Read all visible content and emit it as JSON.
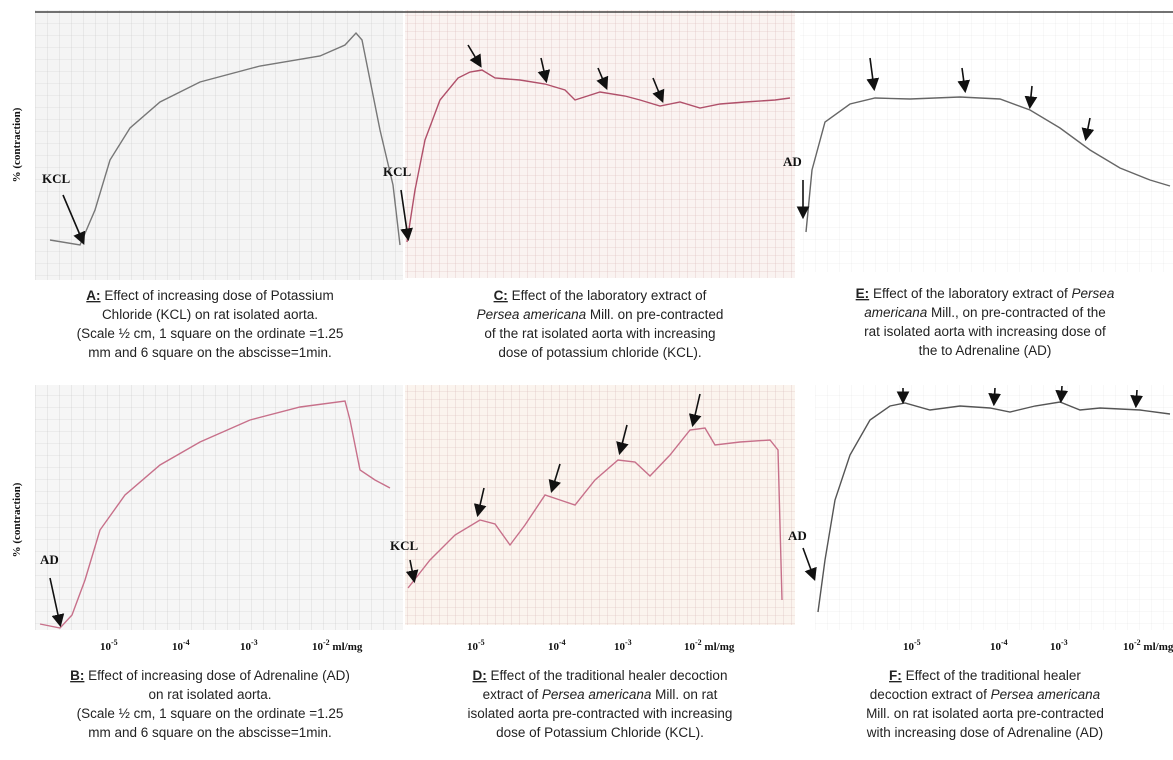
{
  "panels": {
    "A": {
      "label": "A:",
      "marker": "KCL",
      "y_label": "% (contraction)",
      "lines": [
        [
          "Effect of increasing dose of Potassium"
        ],
        [
          "Chloride (KCL) on rat isolated aorta."
        ],
        [
          "(Scale ½ cm, 1 square on the ordinate =1.25"
        ],
        [
          "mm and 6 square on the abscisse=1min."
        ]
      ]
    },
    "C": {
      "label": "C:",
      "marker": "KCL",
      "lines": [
        [
          "Effect of the laboratory extract of"
        ],
        [
          "Persea americana",
          " Mill. on pre-contracted"
        ],
        [
          "of the rat isolated aorta with increasing"
        ],
        [
          "dose of potassium chloride (KCL)."
        ]
      ]
    },
    "E": {
      "label": "E:",
      "marker": "AD",
      "lines": [
        [
          "Effect of the laboratory extract of ",
          "Persea"
        ],
        [
          "americana",
          " Mill., on pre-contracted of the"
        ],
        [
          "rat isolated aorta with increasing dose of"
        ],
        [
          "the to Adrenaline (AD)"
        ]
      ]
    },
    "B": {
      "label": "B:",
      "marker": "AD",
      "y_label": "% (contraction)",
      "x_labels": [
        {
          "base": "10",
          "exp": "-5"
        },
        {
          "base": "10",
          "exp": "-4"
        },
        {
          "base": "10",
          "exp": "-3"
        },
        {
          "base": "10",
          "exp": "-2",
          "unit": " ml/mg"
        }
      ],
      "lines": [
        [
          "Effect of increasing dose of Adrenaline (AD)"
        ],
        [
          "on rat isolated aorta."
        ],
        [
          "(Scale ½ cm, 1 square on the ordinate =1.25"
        ],
        [
          "mm and 6 square on the abscisse=1min."
        ]
      ]
    },
    "D": {
      "label": "D:",
      "marker": "KCL",
      "x_labels": [
        {
          "base": "10",
          "exp": "-5"
        },
        {
          "base": "10",
          "exp": "-4"
        },
        {
          "base": "10",
          "exp": "-3"
        },
        {
          "base": "10",
          "exp": "-2",
          "unit": " ml/mg"
        }
      ],
      "lines": [
        [
          "Effect of the traditional healer decoction"
        ],
        [
          "extract of ",
          "Persea americana",
          " Mill. on rat"
        ],
        [
          "isolated aorta pre-contracted with increasing"
        ],
        [
          "dose of Potassium Chloride (KCL)."
        ]
      ]
    },
    "F": {
      "label": "F:",
      "marker": "AD",
      "x_labels": [
        {
          "base": "10",
          "exp": "-5"
        },
        {
          "base": "10",
          "exp": "-4"
        },
        {
          "base": "10",
          "exp": "-3"
        },
        {
          "base": "10",
          "exp": "-2",
          "unit": " ml/mg"
        }
      ],
      "lines": [
        [
          "Effect of the traditional healer"
        ],
        [
          "decoction extract of ",
          "Persea americana"
        ],
        [
          "Mill. on rat isolated aorta pre-contracted"
        ],
        [
          "with increasing dose of Adrenaline (AD)"
        ]
      ]
    }
  }
}
